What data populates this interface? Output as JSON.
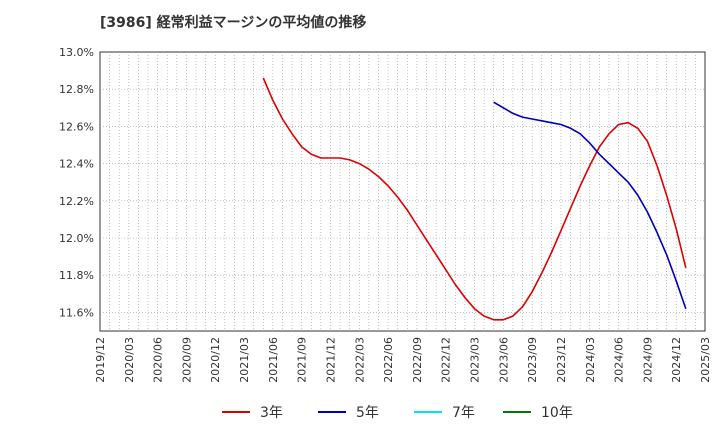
{
  "title": "[3986]  経常利益マージンの平均値の推移",
  "chart_data": {
    "type": "line",
    "title": "[3986]  経常利益マージンの平均値の推移",
    "xlabel": "",
    "ylabel": "",
    "ylim": [
      11.5,
      13.0
    ],
    "yticks": [
      "13.0%",
      "12.8%",
      "12.6%",
      "12.4%",
      "12.2%",
      "12.0%",
      "11.8%",
      "11.6%"
    ],
    "ytick_values": [
      13.0,
      12.8,
      12.6,
      12.4,
      12.2,
      12.0,
      11.8,
      11.6
    ],
    "xticks": [
      "2019/12",
      "2020/03",
      "2020/06",
      "2020/09",
      "2020/12",
      "2021/03",
      "2021/06",
      "2021/09",
      "2021/12",
      "2022/03",
      "2022/06",
      "2022/09",
      "2022/12",
      "2023/03",
      "2023/06",
      "2023/09",
      "2023/12",
      "2024/03",
      "2024/06",
      "2024/09",
      "2024/12",
      "2025/03"
    ],
    "grid": true,
    "legend_position": "bottom",
    "series": [
      {
        "name": "3年",
        "color": "#dd0000",
        "points": [
          [
            "2021/05",
            12.86
          ],
          [
            "2021/06",
            12.74
          ],
          [
            "2021/07",
            12.64
          ],
          [
            "2021/08",
            12.56
          ],
          [
            "2021/09",
            12.49
          ],
          [
            "2021/10",
            12.45
          ],
          [
            "2021/11",
            12.43
          ],
          [
            "2021/12",
            12.43
          ],
          [
            "2022/01",
            12.43
          ],
          [
            "2022/02",
            12.42
          ],
          [
            "2022/03",
            12.4
          ],
          [
            "2022/04",
            12.37
          ],
          [
            "2022/05",
            12.33
          ],
          [
            "2022/06",
            12.28
          ],
          [
            "2022/07",
            12.22
          ],
          [
            "2022/08",
            12.15
          ],
          [
            "2022/09",
            12.07
          ],
          [
            "2022/10",
            11.99
          ],
          [
            "2022/11",
            11.91
          ],
          [
            "2022/12",
            11.83
          ],
          [
            "2023/01",
            11.75
          ],
          [
            "2023/02",
            11.68
          ],
          [
            "2023/03",
            11.62
          ],
          [
            "2023/04",
            11.58
          ],
          [
            "2023/05",
            11.56
          ],
          [
            "2023/06",
            11.56
          ],
          [
            "2023/07",
            11.58
          ],
          [
            "2023/08",
            11.63
          ],
          [
            "2023/09",
            11.71
          ],
          [
            "2023/10",
            11.81
          ],
          [
            "2023/11",
            11.92
          ],
          [
            "2023/12",
            12.04
          ],
          [
            "2024/01",
            12.16
          ],
          [
            "2024/02",
            12.28
          ],
          [
            "2024/03",
            12.39
          ],
          [
            "2024/04",
            12.49
          ],
          [
            "2024/05",
            12.56
          ],
          [
            "2024/06",
            12.61
          ],
          [
            "2024/07",
            12.62
          ],
          [
            "2024/08",
            12.59
          ],
          [
            "2024/09",
            12.52
          ],
          [
            "2024/10",
            12.39
          ],
          [
            "2024/11",
            12.23
          ],
          [
            "2024/12",
            12.05
          ],
          [
            "2025/01",
            11.84
          ]
        ]
      },
      {
        "name": "5年",
        "color": "#0000bb",
        "points": [
          [
            "2023/05",
            12.73
          ],
          [
            "2023/06",
            12.7
          ],
          [
            "2023/07",
            12.67
          ],
          [
            "2023/08",
            12.65
          ],
          [
            "2023/09",
            12.64
          ],
          [
            "2023/10",
            12.63
          ],
          [
            "2023/11",
            12.62
          ],
          [
            "2023/12",
            12.61
          ],
          [
            "2024/01",
            12.59
          ],
          [
            "2024/02",
            12.56
          ],
          [
            "2024/03",
            12.51
          ],
          [
            "2024/04",
            12.45
          ],
          [
            "2024/05",
            12.4
          ],
          [
            "2024/06",
            12.35
          ],
          [
            "2024/07",
            12.3
          ],
          [
            "2024/08",
            12.23
          ],
          [
            "2024/09",
            12.14
          ],
          [
            "2024/10",
            12.03
          ],
          [
            "2024/11",
            11.91
          ],
          [
            "2024/12",
            11.77
          ],
          [
            "2025/01",
            11.62
          ]
        ]
      },
      {
        "name": "7年",
        "color": "#00e5ee",
        "points": []
      },
      {
        "name": "10年",
        "color": "#007700",
        "points": []
      }
    ]
  }
}
